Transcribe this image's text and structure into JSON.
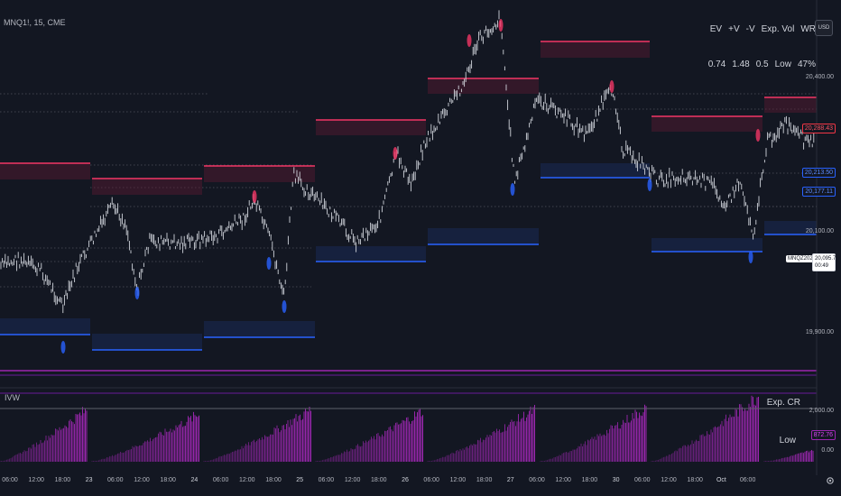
{
  "symbol": {
    "label": "MNQ1!, 15, CME"
  },
  "usd_button": {
    "label": "USD"
  },
  "stats": {
    "headers": [
      "EV",
      "+V",
      "-V",
      "Exp. Vol",
      "WR"
    ],
    "values": [
      "0.74",
      "1.48",
      "0.5",
      "Low",
      "47%"
    ]
  },
  "price_axis": {
    "ticks": [
      "20,400.00",
      "20,100.00",
      "19,900.00"
    ],
    "badges": {
      "upper_red": "20,288.43",
      "blue_1": "20,213.50",
      "blue_2": "20,177.11",
      "current_price": "20,095.75",
      "countdown": "00:49",
      "symbol_tag": "MNQZ2024"
    }
  },
  "indicator": {
    "label": "IVW",
    "exp_label": "Exp. CR",
    "low_label": "Low",
    "ticks": [
      "2,000.00",
      "0.00"
    ],
    "value_badge": "872.76"
  },
  "time_axis": {
    "ticks": [
      "06:00",
      "12:00",
      "18:00",
      "23",
      "06:00",
      "12:00",
      "18:00",
      "24",
      "06:00",
      "12:00",
      "18:00",
      "25",
      "06:00",
      "12:00",
      "18:00",
      "26",
      "06:00",
      "12:00",
      "18:00",
      "27",
      "06:00",
      "12:00",
      "18:00",
      "30",
      "06:00",
      "12:00",
      "18:00",
      "Oct",
      "06:00"
    ]
  },
  "colors": {
    "background": "#131722",
    "candle": "#d1d4dc",
    "resistance": "#f23665",
    "support": "#2962ff",
    "volume_bar": "#9c27b0"
  },
  "icons": {
    "settings": "gear-icon"
  }
}
